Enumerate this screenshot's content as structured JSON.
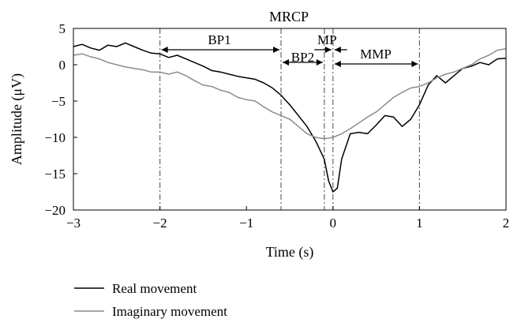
{
  "chart_data": {
    "type": "line",
    "title": "MRCP",
    "xlabel": "Time (s)",
    "ylabel": "Amplitude (μV)",
    "xlim": [
      -3,
      2
    ],
    "ylim": [
      -20,
      5
    ],
    "x_ticks": [
      -3,
      -2,
      -1,
      0,
      1,
      2
    ],
    "y_ticks": [
      5,
      0,
      -5,
      -10,
      -15,
      -20
    ],
    "x_tick_labels": [
      "−3",
      "−2",
      "−1",
      "0",
      "1",
      "2"
    ],
    "y_tick_labels": [
      "5",
      "0",
      "−5",
      "−10",
      "−15",
      "−20"
    ],
    "grid": false,
    "legend_position": "bottom-left, below plot",
    "phase_markers": [
      -2,
      -0.6,
      -0.1,
      0,
      1
    ],
    "phases": [
      {
        "label": "BP1",
        "start": -2,
        "end": -0.6
      },
      {
        "label": "BP2",
        "start": -0.6,
        "end": -0.1
      },
      {
        "label": "MP",
        "start": -0.1,
        "end": 0
      },
      {
        "label": "MMP",
        "start": 0,
        "end": 1
      }
    ],
    "series": [
      {
        "name": "Real movement",
        "color": "#000000",
        "x": [
          -3,
          -2.9,
          -2.8,
          -2.7,
          -2.6,
          -2.5,
          -2.4,
          -2.3,
          -2.2,
          -2.1,
          -2.0,
          -1.9,
          -1.8,
          -1.7,
          -1.6,
          -1.5,
          -1.4,
          -1.3,
          -1.2,
          -1.1,
          -1.0,
          -0.9,
          -0.8,
          -0.7,
          -0.6,
          -0.5,
          -0.4,
          -0.3,
          -0.2,
          -0.1,
          -0.05,
          0,
          0.05,
          0.1,
          0.2,
          0.3,
          0.4,
          0.5,
          0.6,
          0.7,
          0.8,
          0.9,
          1.0,
          1.1,
          1.2,
          1.3,
          1.4,
          1.5,
          1.6,
          1.7,
          1.8,
          1.9,
          2.0
        ],
        "y": [
          2.5,
          2.8,
          2.3,
          2.0,
          2.7,
          2.5,
          3.0,
          2.5,
          2.0,
          1.6,
          1.5,
          1.0,
          1.3,
          0.8,
          0.3,
          -0.2,
          -0.8,
          -1.0,
          -1.3,
          -1.6,
          -1.8,
          -2.0,
          -2.5,
          -3.2,
          -4.2,
          -5.5,
          -7.0,
          -8.5,
          -10.5,
          -13.0,
          -16.0,
          -17.5,
          -17.0,
          -13.0,
          -9.5,
          -9.3,
          -9.5,
          -8.3,
          -7.0,
          -7.2,
          -8.5,
          -7.5,
          -5.5,
          -2.8,
          -1.5,
          -2.5,
          -1.5,
          -0.5,
          -0.2,
          0.3,
          0.0,
          0.8,
          0.9
        ]
      },
      {
        "name": "Imaginary movement",
        "color": "#8c8c8c",
        "x": [
          -3,
          -2.9,
          -2.8,
          -2.7,
          -2.6,
          -2.5,
          -2.4,
          -2.3,
          -2.2,
          -2.1,
          -2.0,
          -1.9,
          -1.8,
          -1.7,
          -1.6,
          -1.5,
          -1.4,
          -1.3,
          -1.2,
          -1.1,
          -1.0,
          -0.9,
          -0.8,
          -0.7,
          -0.6,
          -0.5,
          -0.4,
          -0.3,
          -0.2,
          -0.1,
          0,
          0.1,
          0.2,
          0.3,
          0.4,
          0.5,
          0.6,
          0.7,
          0.8,
          0.9,
          1.0,
          1.1,
          1.2,
          1.3,
          1.4,
          1.5,
          1.6,
          1.7,
          1.8,
          1.9,
          2.0
        ],
        "y": [
          1.3,
          1.5,
          1.1,
          0.8,
          0.3,
          0.0,
          -0.3,
          -0.5,
          -0.7,
          -1.0,
          -1.0,
          -1.3,
          -1.0,
          -1.5,
          -2.2,
          -2.8,
          -3.0,
          -3.5,
          -3.8,
          -4.5,
          -4.8,
          -5.0,
          -5.8,
          -6.5,
          -7.0,
          -7.5,
          -8.5,
          -9.5,
          -10.0,
          -10.2,
          -10.0,
          -9.5,
          -8.8,
          -8.0,
          -7.2,
          -6.5,
          -5.5,
          -4.5,
          -3.8,
          -3.2,
          -3.0,
          -2.5,
          -1.8,
          -1.3,
          -1.0,
          -0.5,
          0.0,
          0.8,
          1.3,
          2.0,
          2.2
        ]
      }
    ]
  }
}
